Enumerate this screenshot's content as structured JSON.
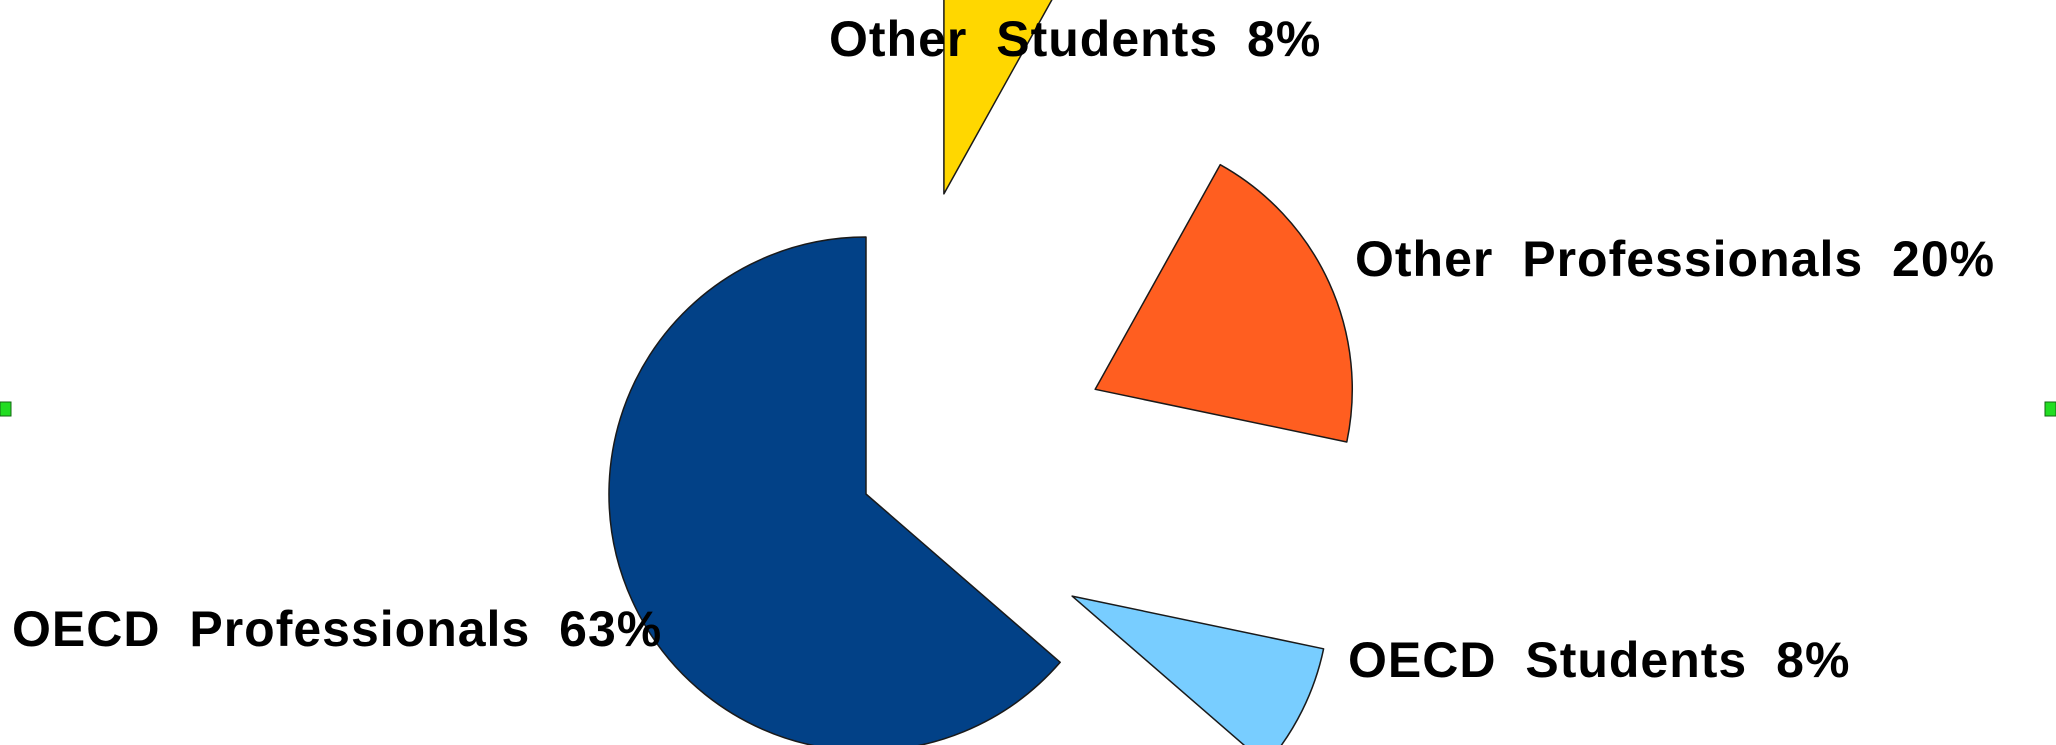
{
  "chart_data": {
    "type": "pie",
    "exploded": true,
    "slices": [
      {
        "name": "OECD Professionals",
        "value": 63,
        "label": "OECD  Professionals  63%",
        "color": "#024187"
      },
      {
        "name": "OECD Students",
        "value": 8,
        "label": "OECD  Students  8%",
        "color": "#78CDFF"
      },
      {
        "name": "Other Professionals",
        "value": 20,
        "label": "Other  Professionals  20%",
        "color": "#FF5E20"
      },
      {
        "name": "Other Students",
        "value": 8,
        "label": "Other  Students  8%",
        "color": "#FFD700"
      }
    ],
    "selection_handle_color": "#22DD22"
  }
}
